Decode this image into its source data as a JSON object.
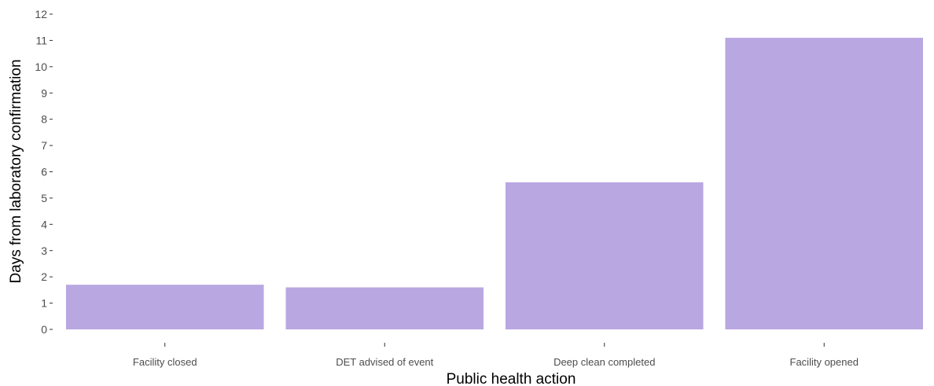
{
  "chart_data": {
    "type": "bar",
    "title": "",
    "xlabel": "Public health action",
    "ylabel": "Days from laboratory confirmation",
    "categories": [
      "Facility closed",
      "DET advised of event",
      "Deep clean completed",
      "Facility opened"
    ],
    "values": [
      1.7,
      1.6,
      5.6,
      11.1
    ],
    "ylim": [
      0,
      12
    ],
    "yticks": [
      0,
      1,
      2,
      3,
      4,
      5,
      6,
      7,
      8,
      9,
      10,
      11,
      12
    ],
    "bar_color": "#b9a7e1",
    "grid": false,
    "legend": "none"
  }
}
